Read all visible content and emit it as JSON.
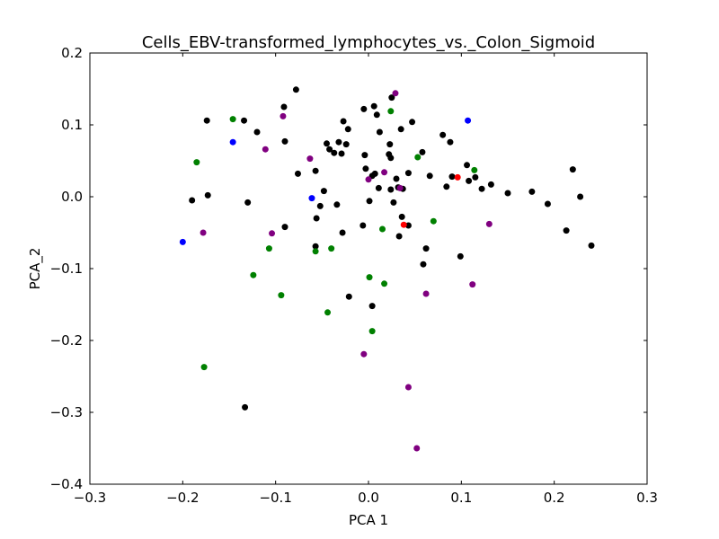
{
  "chart_data": {
    "type": "scatter",
    "title": "Cells_EBV-transformed_lymphocytes_vs._Colon_Sigmoid",
    "xlabel": "PCA 1",
    "ylabel": "PCA_2",
    "xlim": [
      -0.3,
      0.3
    ],
    "ylim": [
      -0.4,
      0.2
    ],
    "xticks": [
      -0.3,
      -0.2,
      -0.1,
      0.0,
      0.1,
      0.2,
      0.3
    ],
    "xtick_labels": [
      "−0.3",
      "−0.2",
      "−0.1",
      "0.0",
      "0.1",
      "0.2",
      "0.3"
    ],
    "yticks": [
      -0.4,
      -0.3,
      -0.2,
      -0.1,
      0.0,
      0.1,
      0.2
    ],
    "ytick_labels": [
      "−0.4",
      "−0.3",
      "−0.2",
      "−0.1",
      "0.0",
      "0.1",
      "0.2"
    ],
    "grid": false,
    "legend": "none",
    "series": [
      {
        "color": "#000000",
        "points": [
          [
            -0.078,
            0.149
          ],
          [
            -0.174,
            0.106
          ],
          [
            -0.134,
            0.106
          ],
          [
            -0.091,
            0.125
          ],
          [
            -0.12,
            0.09
          ],
          [
            -0.09,
            0.077
          ],
          [
            -0.076,
            0.032
          ],
          [
            -0.057,
            0.036
          ],
          [
            -0.19,
            -0.005
          ],
          [
            -0.173,
            0.002
          ],
          [
            -0.13,
            -0.008
          ],
          [
            -0.09,
            -0.042
          ],
          [
            -0.052,
            -0.013
          ],
          [
            -0.056,
            -0.03
          ],
          [
            -0.048,
            0.008
          ],
          [
            -0.034,
            -0.011
          ],
          [
            -0.057,
            -0.069
          ],
          [
            -0.042,
            0.066
          ],
          [
            -0.045,
            0.074
          ],
          [
            -0.037,
            0.061
          ],
          [
            -0.032,
            0.076
          ],
          [
            -0.027,
            0.105
          ],
          [
            -0.029,
            0.06
          ],
          [
            -0.024,
            0.073
          ],
          [
            -0.022,
            0.094
          ],
          [
            -0.028,
            -0.05
          ],
          [
            -0.005,
            0.122
          ],
          [
            0.006,
            0.126
          ],
          [
            0.009,
            0.114
          ],
          [
            0.012,
            0.09
          ],
          [
            -0.004,
            0.058
          ],
          [
            -0.003,
            0.039
          ],
          [
            0.004,
            0.029
          ],
          [
            0.007,
            0.032
          ],
          [
            0.011,
            0.012
          ],
          [
            0.001,
            -0.006
          ],
          [
            -0.006,
            -0.04
          ],
          [
            0.025,
            0.138
          ],
          [
            0.035,
            0.094
          ],
          [
            0.023,
            0.073
          ],
          [
            0.024,
            0.054
          ],
          [
            0.022,
            0.059
          ],
          [
            0.03,
            0.025
          ],
          [
            0.043,
            0.033
          ],
          [
            0.058,
            0.062
          ],
          [
            0.047,
            0.104
          ],
          [
            0.024,
            0.01
          ],
          [
            0.032,
            0.013
          ],
          [
            0.037,
            0.011
          ],
          [
            0.027,
            -0.008
          ],
          [
            0.036,
            -0.028
          ],
          [
            0.033,
            -0.055
          ],
          [
            0.043,
            -0.04
          ],
          [
            0.062,
            -0.072
          ],
          [
            0.059,
            -0.094
          ],
          [
            0.066,
            0.029
          ],
          [
            0.08,
            0.086
          ],
          [
            0.088,
            0.076
          ],
          [
            0.084,
            0.014
          ],
          [
            0.09,
            0.028
          ],
          [
            0.106,
            0.044
          ],
          [
            0.108,
            0.022
          ],
          [
            0.115,
            0.027
          ],
          [
            0.122,
            0.011
          ],
          [
            0.132,
            0.017
          ],
          [
            0.15,
            0.005
          ],
          [
            0.176,
            0.007
          ],
          [
            0.193,
            -0.01
          ],
          [
            0.22,
            0.038
          ],
          [
            0.228,
            0.0
          ],
          [
            0.213,
            -0.047
          ],
          [
            0.24,
            -0.068
          ],
          [
            -0.021,
            -0.139
          ],
          [
            0.004,
            -0.152
          ],
          [
            0.099,
            -0.083
          ],
          [
            -0.133,
            -0.293
          ]
        ]
      },
      {
        "color": "#008000",
        "points": [
          [
            -0.146,
            0.108
          ],
          [
            -0.185,
            0.048
          ],
          [
            0.024,
            0.119
          ],
          [
            0.053,
            0.055
          ],
          [
            0.114,
            0.037
          ],
          [
            0.07,
            -0.034
          ],
          [
            0.015,
            -0.045
          ],
          [
            -0.107,
            -0.072
          ],
          [
            -0.124,
            -0.109
          ],
          [
            -0.094,
            -0.137
          ],
          [
            -0.057,
            -0.076
          ],
          [
            -0.04,
            -0.072
          ],
          [
            -0.044,
            -0.161
          ],
          [
            0.001,
            -0.112
          ],
          [
            0.017,
            -0.121
          ],
          [
            0.004,
            -0.187
          ],
          [
            -0.177,
            -0.237
          ]
        ]
      },
      {
        "color": "#800080",
        "points": [
          [
            0.029,
            0.144
          ],
          [
            -0.092,
            0.112
          ],
          [
            -0.111,
            0.066
          ],
          [
            -0.063,
            0.053
          ],
          [
            0.017,
            0.034
          ],
          [
            0.0,
            0.024
          ],
          [
            -0.178,
            -0.05
          ],
          [
            -0.104,
            -0.051
          ],
          [
            0.13,
            -0.038
          ],
          [
            0.062,
            -0.135
          ],
          [
            0.112,
            -0.122
          ],
          [
            -0.005,
            -0.219
          ],
          [
            0.043,
            -0.265
          ],
          [
            0.052,
            -0.35
          ],
          [
            0.034,
            0.012
          ]
        ]
      },
      {
        "color": "#0000ff",
        "points": [
          [
            0.107,
            0.106
          ],
          [
            -0.146,
            0.076
          ],
          [
            -0.061,
            -0.002
          ],
          [
            -0.2,
            -0.063
          ]
        ]
      },
      {
        "color": "#ff0000",
        "points": [
          [
            0.096,
            0.027
          ],
          [
            0.038,
            -0.039
          ]
        ]
      }
    ]
  }
}
